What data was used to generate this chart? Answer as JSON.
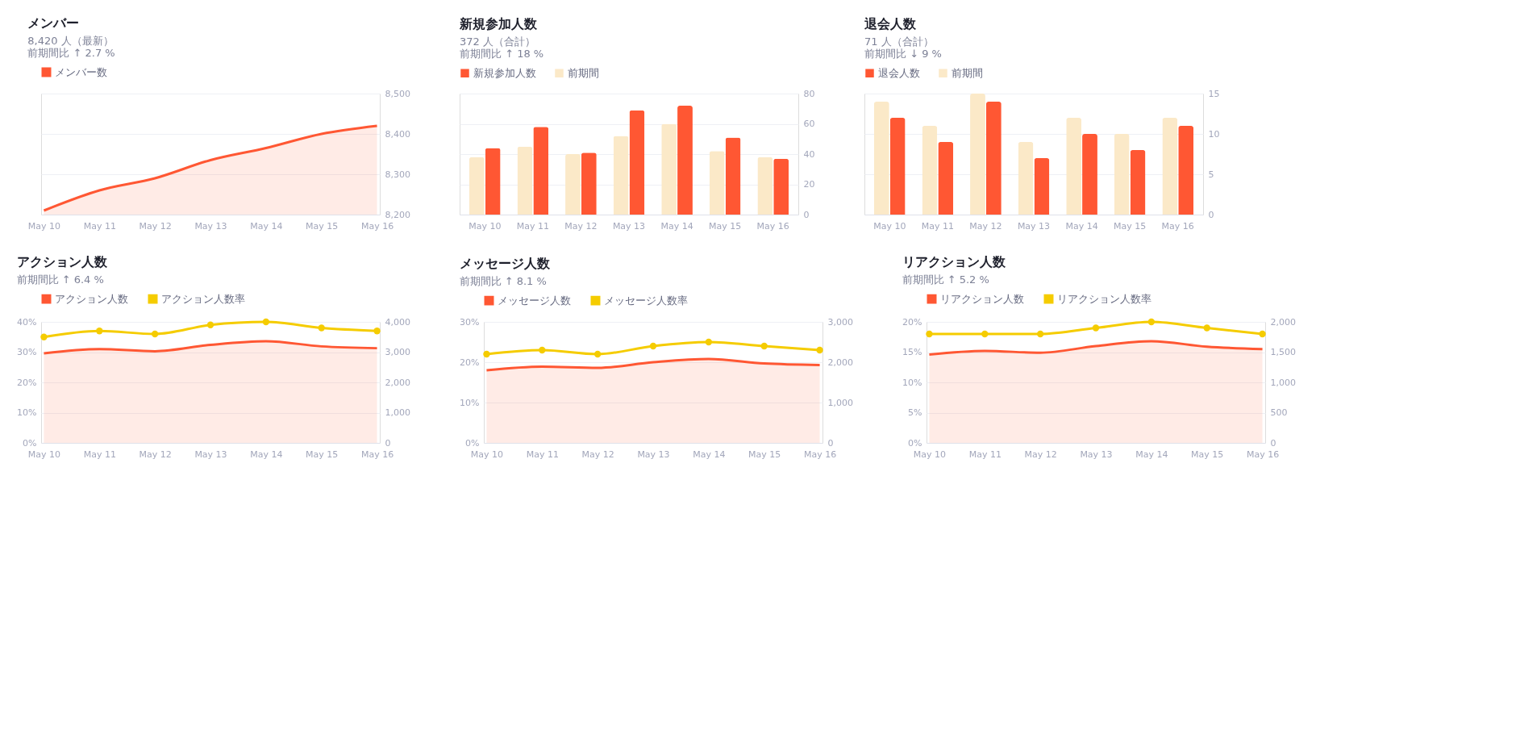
{
  "chart_data": [
    {
      "type": "area",
      "title": "メンバー",
      "subtitle": "8,420 人（最新）",
      "annotations": [
        "前期間比 ↑ 2.7 %"
      ],
      "categories": [
        "May 10",
        "May 11",
        "May 12",
        "May 13",
        "May 14",
        "May 15",
        "May 16"
      ],
      "series": [
        {
          "name": "メンバー数",
          "color": "#ff5733",
          "values": [
            8210,
            8260,
            8290,
            8335,
            8365,
            8400,
            8420
          ]
        }
      ],
      "ylim": [
        8200,
        8500
      ],
      "yticks": [
        {
          "value": 8200,
          "label": "8,200"
        },
        {
          "value": 8300,
          "label": "8,300"
        },
        {
          "value": 8400,
          "label": "8,400"
        },
        {
          "value": 8500,
          "label": "8,500"
        }
      ],
      "grid": "y",
      "legend": "top left"
    },
    {
      "type": "bar",
      "title": "新規参加人数",
      "subtitle": "372 人（合計）",
      "annotations": [
        "前期間比 ↑ 18 %"
      ],
      "categories": [
        "May 10",
        "May 11",
        "May 12",
        "May 13",
        "May 14",
        "May 15",
        "May 16"
      ],
      "series": [
        {
          "name": "新規参加人数",
          "color": "#ff5733",
          "values": [
            44,
            58,
            41,
            69,
            72,
            51,
            37
          ]
        },
        {
          "name": "前期間",
          "color": "#fbe9c8",
          "values": [
            38,
            45,
            40,
            52,
            60,
            42,
            38
          ]
        }
      ],
      "ylim": [
        0,
        80
      ],
      "yticks": [
        0,
        20,
        40,
        60,
        80
      ],
      "grid": "y",
      "legend": "top left"
    },
    {
      "type": "bar",
      "title": "退会人数",
      "subtitle": "71 人（合計）",
      "annotations": [
        "前期間比 ↓ 9 %"
      ],
      "categories": [
        "May 10",
        "May 11",
        "May 12",
        "May 13",
        "May 14",
        "May 15",
        "May 16"
      ],
      "series": [
        {
          "name": "退会人数",
          "color": "#ff5733",
          "values": [
            12,
            9,
            14,
            7,
            10,
            8,
            11
          ]
        },
        {
          "name": "前期間",
          "color": "#fbe9c8",
          "values": [
            14,
            11,
            15,
            9,
            12,
            10,
            12
          ]
        }
      ],
      "ylim": [
        0,
        15
      ],
      "yticks": [
        0,
        5,
        10,
        15
      ],
      "grid": "y",
      "legend": "top left"
    },
    {
      "type": "area",
      "title": "アクション人数",
      "annotations": [
        "前期間比 ↑ 6.4 %"
      ],
      "categories": [
        "May 10",
        "May 11",
        "May 12",
        "May 13",
        "May 14",
        "May 15",
        "May 16"
      ],
      "series": [
        {
          "name": "アクション人数",
          "color": "#ff5733",
          "axis": "y2",
          "values": [
            2960,
            3100,
            3030,
            3240,
            3360,
            3190,
            3130
          ]
        },
        {
          "name": "アクション人数率",
          "color": "#f5cc00",
          "type": "line",
          "marker": "circle",
          "values": [
            35,
            37,
            36,
            39,
            40,
            38,
            37
          ]
        }
      ],
      "ylim": [
        0,
        40
      ],
      "yticks": [
        {
          "value": 0,
          "label": "0%"
        },
        {
          "value": 10,
          "label": "10%"
        },
        {
          "value": 20,
          "label": "20%"
        },
        {
          "value": 30,
          "label": "30%"
        },
        {
          "value": 40,
          "label": "40%"
        }
      ],
      "y2lim": [
        0,
        4000
      ],
      "y2ticks": [
        0,
        {
          "value": 1000,
          "label": "1,000"
        },
        {
          "value": 2000,
          "label": "2,000"
        },
        {
          "value": 3000,
          "label": "3,000"
        },
        {
          "value": 4000,
          "label": "4,000"
        }
      ],
      "grid": "y",
      "legend": "top left"
    },
    {
      "type": "area",
      "title": "メッセージ人数",
      "annotations": [
        "前期間比 ↑ 8.1 %"
      ],
      "categories": [
        "May 10",
        "May 11",
        "May 12",
        "May 13",
        "May 14",
        "May 15",
        "May 16"
      ],
      "series": [
        {
          "name": "メッセージ人数",
          "color": "#ff5733",
          "axis": "y2",
          "values": [
            1800,
            1890,
            1860,
            2000,
            2080,
            1970,
            1930
          ]
        },
        {
          "name": "メッセージ人数率",
          "color": "#f5cc00",
          "type": "line",
          "marker": "circle",
          "values": [
            22,
            23,
            22,
            24,
            25,
            24,
            23
          ]
        }
      ],
      "ylim": [
        0,
        30
      ],
      "yticks": [
        {
          "value": 0,
          "label": "0%"
        },
        {
          "value": 10,
          "label": "10%"
        },
        {
          "value": 20,
          "label": "20%"
        },
        {
          "value": 30,
          "label": "30%"
        }
      ],
      "y2lim": [
        0,
        3000
      ],
      "y2ticks": [
        0,
        {
          "value": 1000,
          "label": "1,000"
        },
        {
          "value": 2000,
          "label": "2,000"
        },
        {
          "value": 3000,
          "label": "3,000"
        }
      ],
      "grid": "y",
      "legend": "top left"
    },
    {
      "type": "area",
      "title": "リアクション人数",
      "annotations": [
        "前期間比 ↑ 5.2 %"
      ],
      "categories": [
        "May 10",
        "May 11",
        "May 12",
        "May 13",
        "May 14",
        "May 15",
        "May 16"
      ],
      "series": [
        {
          "name": "リアクション人数",
          "color": "#ff5733",
          "axis": "y2",
          "values": [
            1460,
            1520,
            1490,
            1600,
            1680,
            1590,
            1550
          ]
        },
        {
          "name": "リアクション人数率",
          "color": "#f5cc00",
          "type": "line",
          "marker": "circle",
          "values": [
            18,
            18,
            18,
            19,
            20,
            19,
            18
          ]
        }
      ],
      "ylim": [
        0,
        20
      ],
      "yticks": [
        {
          "value": 0,
          "label": "0%"
        },
        {
          "value": 5,
          "label": "5%"
        },
        {
          "value": 10,
          "label": "10%"
        },
        {
          "value": 15,
          "label": "15%"
        },
        {
          "value": 20,
          "label": "20%"
        }
      ],
      "y2lim": [
        0,
        2000
      ],
      "y2ticks": [
        0,
        500,
        {
          "value": 1000,
          "label": "1,000"
        },
        {
          "value": 1500,
          "label": "1,500"
        },
        {
          "value": 2000,
          "label": "2,000"
        }
      ],
      "grid": "y",
      "legend": "top left"
    }
  ]
}
